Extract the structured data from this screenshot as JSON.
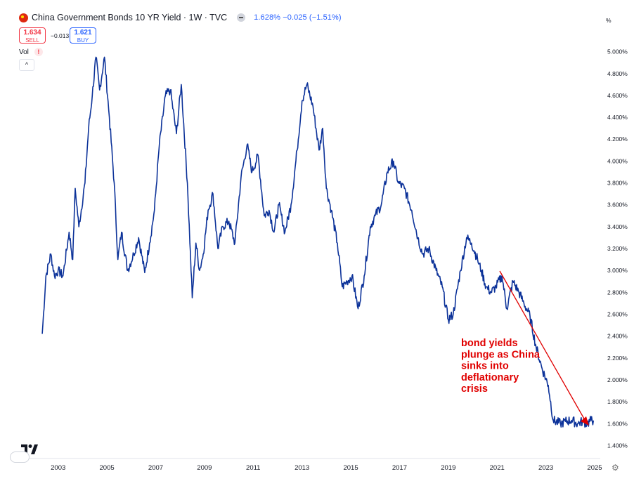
{
  "header": {
    "title": "China Government Bonds 10 YR Yield · 1W · TVC",
    "quote_value": "1.628%",
    "quote_change": "−0.025 (−1.51%)",
    "sell_price": "1.634",
    "sell_label": "SELL",
    "spread": "−0.013",
    "buy_price": "1.621",
    "buy_label": "BUY",
    "vol_label": "Vol",
    "warn_glyph": "!",
    "collapse_glyph": "^"
  },
  "icons": [
    "china-flag-icon",
    "quote-toggle-icon",
    "warning-icon",
    "collapse-icon",
    "tradingview-logo-icon",
    "settings-icon"
  ],
  "colors": {
    "line": "#0c3299",
    "annotation": "#e00000",
    "axis_text": "#131722"
  },
  "chart_data": {
    "type": "line",
    "title": "China Government Bonds 10 YR Yield",
    "ylabel": "%",
    "axis_unit_label": "%",
    "ylim": [
      1.3,
      5.28
    ],
    "xlim": [
      2002.0,
      2025.0
    ],
    "y_ticks": [
      1.4,
      1.6,
      1.8,
      2.0,
      2.2,
      2.4,
      2.6,
      2.8,
      3.0,
      3.2,
      3.4,
      3.6,
      3.8,
      4.0,
      4.2,
      4.4,
      4.6,
      4.8,
      5.0
    ],
    "y_tick_labels": [
      "1.400%",
      "1.600%",
      "1.800%",
      "2.000%",
      "2.200%",
      "2.400%",
      "2.600%",
      "2.800%",
      "3.000%",
      "3.200%",
      "3.400%",
      "3.600%",
      "3.800%",
      "4.000%",
      "4.200%",
      "4.400%",
      "4.600%",
      "4.800%",
      "5.000%"
    ],
    "x_ticks": [
      2003,
      2005,
      2007,
      2009,
      2011,
      2013,
      2015,
      2017,
      2019,
      2021,
      2023,
      2025
    ],
    "x_tick_labels": [
      "2003",
      "2005",
      "2007",
      "2009",
      "2011",
      "2013",
      "2015",
      "2017",
      "2019",
      "2021",
      "2023",
      "2025"
    ],
    "series": [
      {
        "name": "China 10Y yield",
        "x": [
          2002.35,
          2002.5,
          2002.7,
          2002.85,
          2003.0,
          2003.2,
          2003.45,
          2003.6,
          2003.7,
          2003.85,
          2004.1,
          2004.25,
          2004.4,
          2004.55,
          2004.7,
          2004.9,
          2005.1,
          2005.3,
          2005.45,
          2005.6,
          2005.85,
          2006.1,
          2006.3,
          2006.55,
          2006.75,
          2006.95,
          2007.15,
          2007.4,
          2007.6,
          2007.85,
          2008.05,
          2008.3,
          2008.5,
          2008.65,
          2008.8,
          2008.95,
          2009.15,
          2009.35,
          2009.55,
          2009.75,
          2010.0,
          2010.25,
          2010.5,
          2010.75,
          2010.95,
          2011.2,
          2011.45,
          2011.65,
          2011.85,
          2012.05,
          2012.3,
          2012.55,
          2012.8,
          2013.0,
          2013.2,
          2013.45,
          2013.7,
          2013.85,
          2014.0,
          2014.2,
          2014.45,
          2014.65,
          2014.85,
          2015.05,
          2015.3,
          2015.55,
          2015.8,
          2016.0,
          2016.25,
          2016.5,
          2016.75,
          2016.95,
          2017.2,
          2017.5,
          2017.75,
          2017.95,
          2018.2,
          2018.5,
          2018.75,
          2019.0,
          2019.2,
          2019.5,
          2019.75,
          2019.95,
          2020.2,
          2020.35,
          2020.55,
          2020.75,
          2020.95,
          2021.2,
          2021.4,
          2021.65,
          2021.9,
          2022.1,
          2022.35,
          2022.6,
          2022.85,
          2023.1,
          2023.3,
          2023.6,
          2023.8,
          2024.05,
          2024.3,
          2024.5,
          2024.7,
          2024.85,
          2024.95
        ],
        "y": [
          2.42,
          2.95,
          3.15,
          2.95,
          3.0,
          2.95,
          3.35,
          3.1,
          3.75,
          3.4,
          3.8,
          4.3,
          4.6,
          4.95,
          4.65,
          4.95,
          4.4,
          3.8,
          3.1,
          3.35,
          3.0,
          3.15,
          3.3,
          2.98,
          3.25,
          3.55,
          4.15,
          4.6,
          4.65,
          4.25,
          4.7,
          3.8,
          2.75,
          3.25,
          3.0,
          3.15,
          3.55,
          3.7,
          3.2,
          3.4,
          3.45,
          3.25,
          3.85,
          4.15,
          3.9,
          4.05,
          3.5,
          3.55,
          3.35,
          3.6,
          3.35,
          3.6,
          4.1,
          4.55,
          4.7,
          4.5,
          4.1,
          4.3,
          3.75,
          3.55,
          3.25,
          2.85,
          2.9,
          2.95,
          2.65,
          2.95,
          3.4,
          3.5,
          3.6,
          3.9,
          4.0,
          3.8,
          3.75,
          3.55,
          3.3,
          3.15,
          3.2,
          3.0,
          2.85,
          2.55,
          2.6,
          3.0,
          3.3,
          3.25,
          3.1,
          3.0,
          2.85,
          2.8,
          2.85,
          2.95,
          2.65,
          2.9,
          2.8,
          2.7,
          2.58,
          2.3,
          2.1,
          1.95,
          1.63,
          1.6,
          1.62,
          1.63,
          1.6,
          1.62,
          1.6,
          1.63,
          1.628
        ]
      }
    ],
    "annotations": [
      {
        "text": "bond yields plunge as China sinks into deflationary crisis",
        "lines": [
          "bond yields",
          "plunge as China",
          "sinks into",
          "deflationary",
          "crisis"
        ]
      }
    ]
  }
}
